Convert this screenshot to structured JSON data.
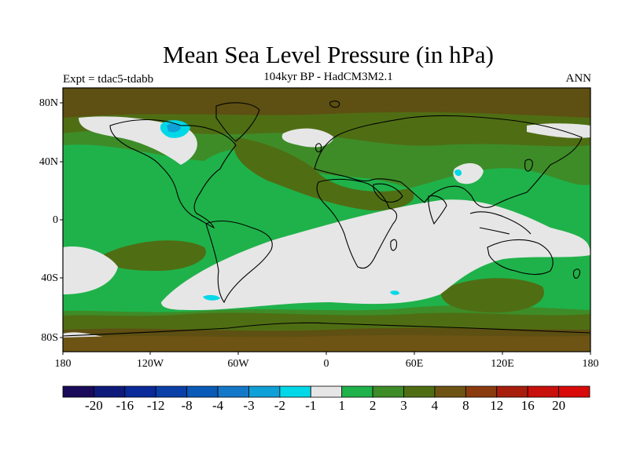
{
  "title": "Mean Sea Level Pressure (in hPa)",
  "subtitle": "104kyr BP - HadCM3M2.1",
  "expt_label": "Expt = tdac5-tdabb",
  "season": "ANN",
  "map": {
    "projection": "cylindrical equidistant",
    "lon_range": [
      -180,
      180
    ],
    "lat_range": [
      -90,
      90
    ],
    "y_tick_labels": [
      "80N",
      "40N",
      "0",
      "40S",
      "80S"
    ],
    "x_tick_labels": [
      "180",
      "120W",
      "60W",
      "0",
      "60E",
      "120E",
      "180"
    ]
  },
  "colorbar": {
    "labels": [
      "-20",
      "-16",
      "-12",
      "-8",
      "-4",
      "-3",
      "-2",
      "-1",
      "1",
      "2",
      "3",
      "4",
      "8",
      "12",
      "16",
      "20"
    ],
    "colors": [
      "#1a0a5a",
      "#0d1a7a",
      "#0a2a9a",
      "#0a40a8",
      "#0a5ab8",
      "#1478c8",
      "#10a0d8",
      "#00d8e8",
      "#e6e6e6",
      "#1fb24a",
      "#3e8c28",
      "#4f6e14",
      "#6e5414",
      "#8a3c10",
      "#a81e0c",
      "#c8100c",
      "#d80a0a"
    ]
  },
  "palette": {
    "dark_olive": "#5e4f12",
    "olive": "#4f6e14",
    "mid_green": "#3e8c28",
    "bright_green": "#1fb24a",
    "light_gray": "#e6e6e6",
    "cyan": "#00d8e8",
    "blue": "#1478c8"
  }
}
